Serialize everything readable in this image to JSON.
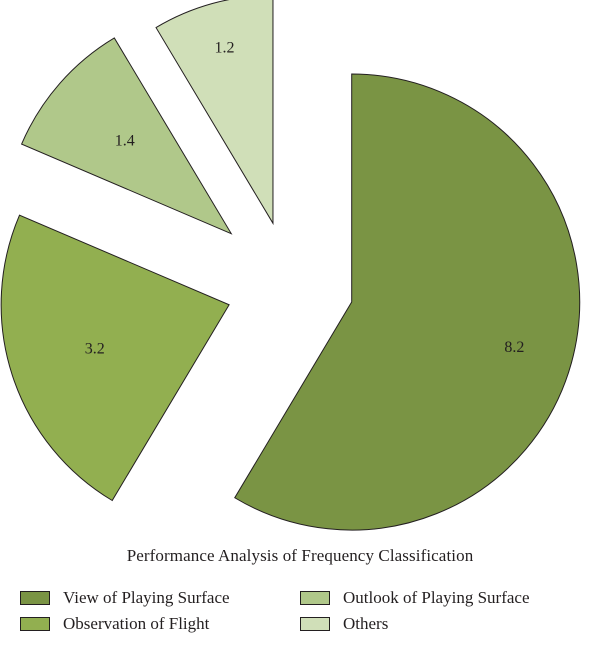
{
  "chart_data": {
    "type": "pie",
    "exploded": true,
    "title": "Performance Analysis of Frequency Classification",
    "legend_placement": "bottom",
    "slices": [
      {
        "name": "View of Playing Surface",
        "value": 8.2,
        "label": "8.2",
        "color": "#7a9444"
      },
      {
        "name": "Observation of Flight",
        "value": 3.2,
        "label": "3.2",
        "color": "#92af50"
      },
      {
        "name": "Outlook of Playing Surface",
        "value": 1.4,
        "label": "1.4",
        "color": "#b0c88a"
      },
      {
        "name": "Others",
        "value": 1.2,
        "label": "1.2",
        "color": "#d0dfb8"
      }
    ]
  }
}
